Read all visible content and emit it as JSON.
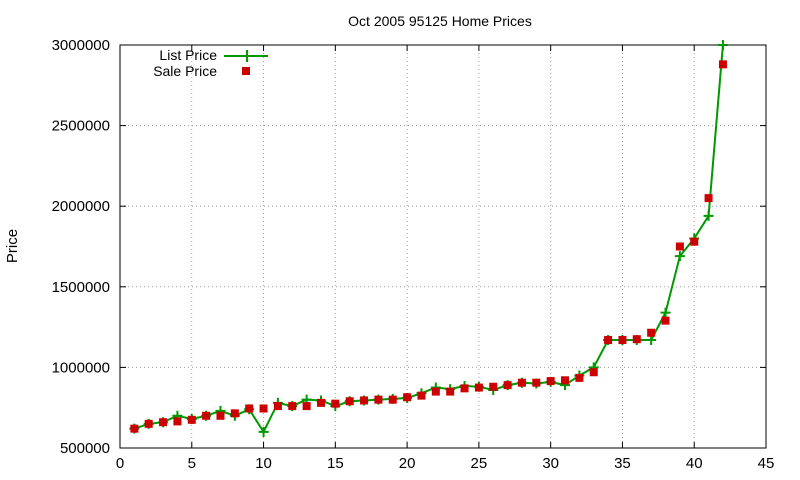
{
  "chart_data": {
    "type": "line",
    "title": "Oct 2005 95125 Home Prices",
    "xlabel": "",
    "ylabel": "Price",
    "xlim": [
      0,
      45
    ],
    "ylim": [
      500000,
      3000000
    ],
    "xticks": [
      0,
      5,
      10,
      15,
      20,
      25,
      30,
      35,
      40,
      45
    ],
    "yticks": [
      500000,
      1000000,
      1500000,
      2000000,
      2500000,
      3000000
    ],
    "grid": true,
    "legend_position": "top-left",
    "x": [
      1,
      2,
      3,
      4,
      5,
      6,
      7,
      8,
      9,
      10,
      11,
      12,
      13,
      14,
      15,
      16,
      17,
      18,
      19,
      20,
      21,
      22,
      23,
      24,
      25,
      26,
      27,
      28,
      29,
      30,
      31,
      32,
      33,
      34,
      35,
      36,
      37,
      38,
      39,
      40,
      41,
      42
    ],
    "series": [
      {
        "name": "List Price",
        "style": "line-plus",
        "color": "#009900",
        "values": [
          620000,
          650000,
          660000,
          700000,
          680000,
          700000,
          730000,
          700000,
          740000,
          600000,
          780000,
          760000,
          800000,
          795000,
          760000,
          790000,
          795000,
          800000,
          805000,
          810000,
          840000,
          875000,
          865000,
          885000,
          880000,
          860000,
          890000,
          905000,
          900000,
          910000,
          890000,
          950000,
          1000000,
          1170000,
          1170000,
          1170000,
          1170000,
          1340000,
          1690000,
          1800000,
          1940000,
          3000000
        ]
      },
      {
        "name": "Sale Price",
        "style": "square",
        "color": "#cc0000",
        "values": [
          620000,
          650000,
          660000,
          665000,
          675000,
          700000,
          700000,
          715000,
          745000,
          745000,
          760000,
          760000,
          760000,
          780000,
          775000,
          790000,
          795000,
          800000,
          800000,
          815000,
          825000,
          850000,
          850000,
          870000,
          875000,
          880000,
          890000,
          905000,
          905000,
          915000,
          920000,
          935000,
          970000,
          1170000,
          1170000,
          1175000,
          1215000,
          1290000,
          1750000,
          1780000,
          2050000,
          2880000
        ]
      }
    ]
  }
}
